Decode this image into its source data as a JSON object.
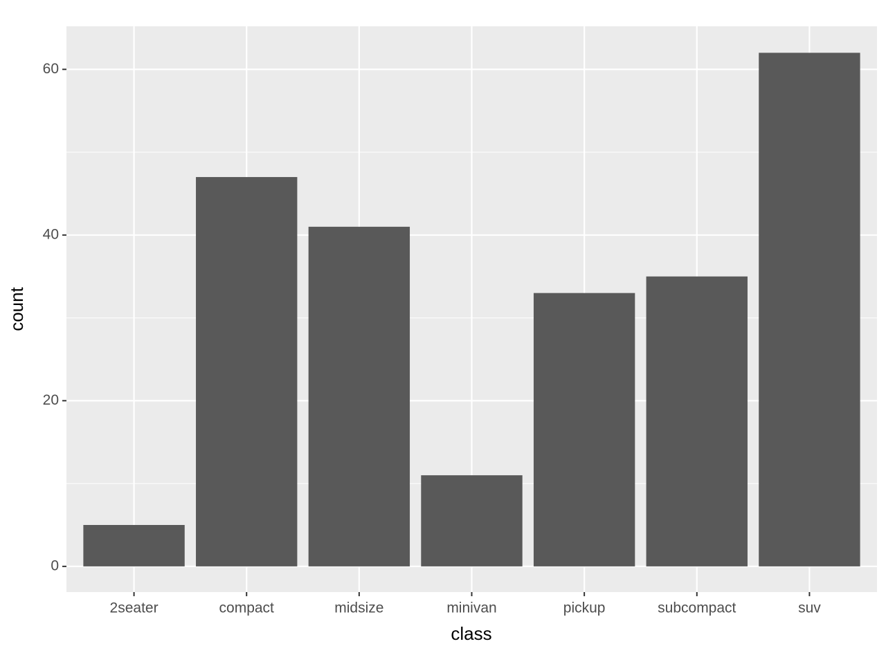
{
  "chart_data": {
    "type": "bar",
    "x_label": "class",
    "y_label": "count",
    "categories": [
      "2seater",
      "compact",
      "midsize",
      "minivan",
      "pickup",
      "subcompact",
      "suv"
    ],
    "values": [
      5,
      47,
      41,
      11,
      33,
      35,
      62
    ],
    "color": "#595959",
    "ylim": [
      -3.1,
      65.2
    ],
    "yticks": [
      0,
      20,
      40,
      60
    ],
    "yminorticks": [
      10,
      30,
      50
    ],
    "grid": true
  }
}
